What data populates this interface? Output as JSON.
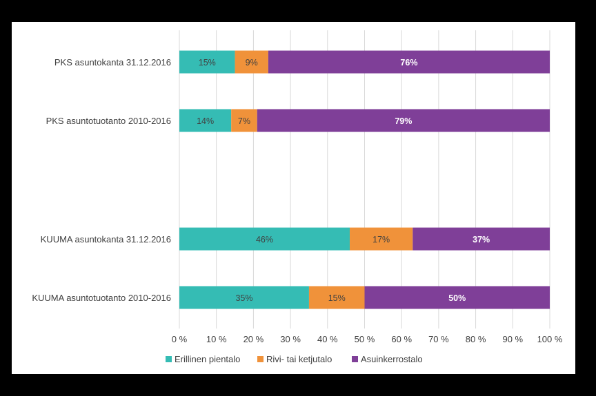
{
  "chart_data": {
    "type": "bar",
    "orientation": "horizontal",
    "stacked": true,
    "categories": [
      "PKS asuntokanta 31.12.2016",
      "PKS asuntotuotanto 2010-2016",
      "KUUMA asuntokanta 31.12.2016",
      "KUUMA asuntotuotanto 2010-2016"
    ],
    "series": [
      {
        "name": "Erillinen pientalo",
        "values": [
          15,
          14,
          46,
          35
        ],
        "labels": [
          "15%",
          "14%",
          "46%",
          "35%"
        ],
        "color": "#35bcb4",
        "label_color": "#404040",
        "label_bold": false
      },
      {
        "name": "Rivi- tai ketjutalo",
        "values": [
          9,
          7,
          17,
          15
        ],
        "labels": [
          "9%",
          "7%",
          "17%",
          "15%"
        ],
        "color": "#f0923a",
        "label_color": "#404040",
        "label_bold": false
      },
      {
        "name": "Asuinkerrostalo",
        "values": [
          76,
          79,
          37,
          50
        ],
        "labels": [
          "76%",
          "79%",
          "37%",
          "50%"
        ],
        "color": "#7f3f98",
        "label_color": "#ffffff",
        "label_bold": true
      }
    ],
    "xlim": [
      0,
      100
    ],
    "x_ticks": [
      "0 %",
      "10 %",
      "20 %",
      "30 %",
      "40 %",
      "50 %",
      "60 %",
      "70 %",
      "80 %",
      "90 %",
      "100 %"
    ],
    "grid": "vertical",
    "legend_position": "bottom",
    "title": "",
    "xlabel": "",
    "ylabel": ""
  }
}
